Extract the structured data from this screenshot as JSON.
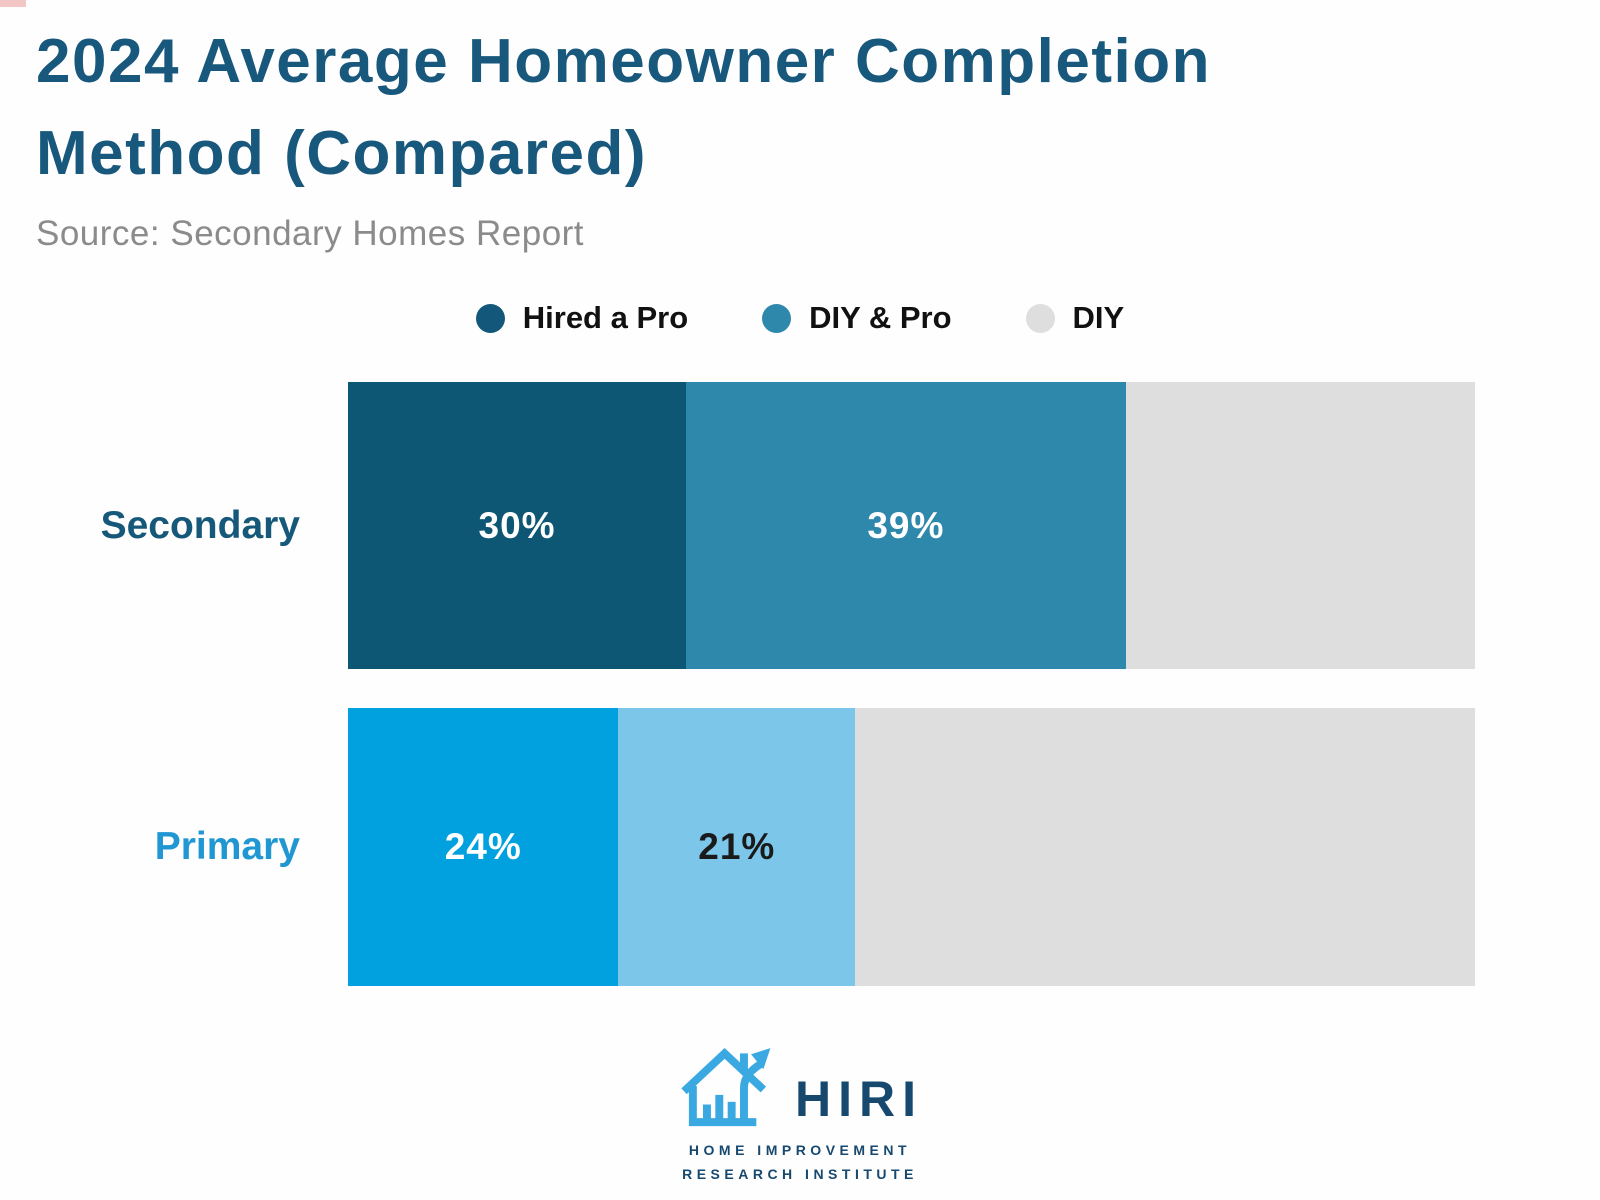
{
  "page": {
    "background": "#fefefe",
    "artifact_color": "#f2c6c4"
  },
  "header": {
    "title": "2024 Average Homeowner Completion Method (Compared)",
    "title_lines": [
      "2024 Average Homeowner Completion",
      "Method (Compared)"
    ],
    "title_color": "#17587c",
    "source": "Source: Secondary Homes Report",
    "source_color": "#8b8b8b"
  },
  "legend": {
    "items": [
      {
        "label": "Hired a Pro",
        "color": "#13587a"
      },
      {
        "label": "DIY & Pro",
        "color": "#2e88ab"
      },
      {
        "label": "DIY",
        "color": "#dedede"
      }
    ]
  },
  "chart_data": {
    "type": "bar",
    "orientation": "horizontal",
    "stacked": true,
    "units": "percent",
    "xlim": [
      0,
      100
    ],
    "grid": false,
    "legend_position": "top-center",
    "title": "2024 Average Homeowner Completion Method (Compared)",
    "source": "Source: Secondary Homes Report",
    "legend_entries": [
      "Hired a Pro",
      "DIY & Pro",
      "DIY"
    ],
    "categories": [
      "Secondary",
      "Primary"
    ],
    "series": [
      {
        "name": "Hired a Pro",
        "values": [
          30,
          24
        ]
      },
      {
        "name": "DIY & Pro",
        "values": [
          39,
          21
        ]
      },
      {
        "name": "DIY",
        "values": [
          31,
          55
        ]
      }
    ],
    "rows": [
      {
        "label": "Secondary",
        "label_color": "#15587a",
        "segments": [
          {
            "name": "Hired a Pro",
            "value": 30,
            "display": "30%",
            "color": "#0d5674",
            "text_color": "#ffffff"
          },
          {
            "name": "DIY & Pro",
            "value": 39,
            "display": "39%",
            "color": "#2e88ab",
            "text_color": "#ffffff"
          },
          {
            "name": "DIY",
            "value": 31,
            "display": "",
            "color": "#dedede",
            "text_color": ""
          }
        ]
      },
      {
        "label": "Primary",
        "label_color": "#2097d3",
        "segments": [
          {
            "name": "Hired a Pro",
            "value": 24,
            "display": "24%",
            "color": "#01a1df",
            "text_color": "#ffffff"
          },
          {
            "name": "DIY & Pro",
            "value": 21,
            "display": "21%",
            "color": "#7cc6ea",
            "text_color": "#1a1a1a"
          },
          {
            "name": "DIY",
            "value": 55,
            "display": "",
            "color": "#dedede",
            "text_color": ""
          }
        ]
      }
    ]
  },
  "logo": {
    "word": "HIRI",
    "subtitle_line1": "HOME IMPROVEMENT",
    "subtitle_line2": "RESEARCH INSTITUTE",
    "icon": "house-growth-arrow-icon",
    "icon_color": "#3aa9e1",
    "text_color": "#17486e"
  }
}
